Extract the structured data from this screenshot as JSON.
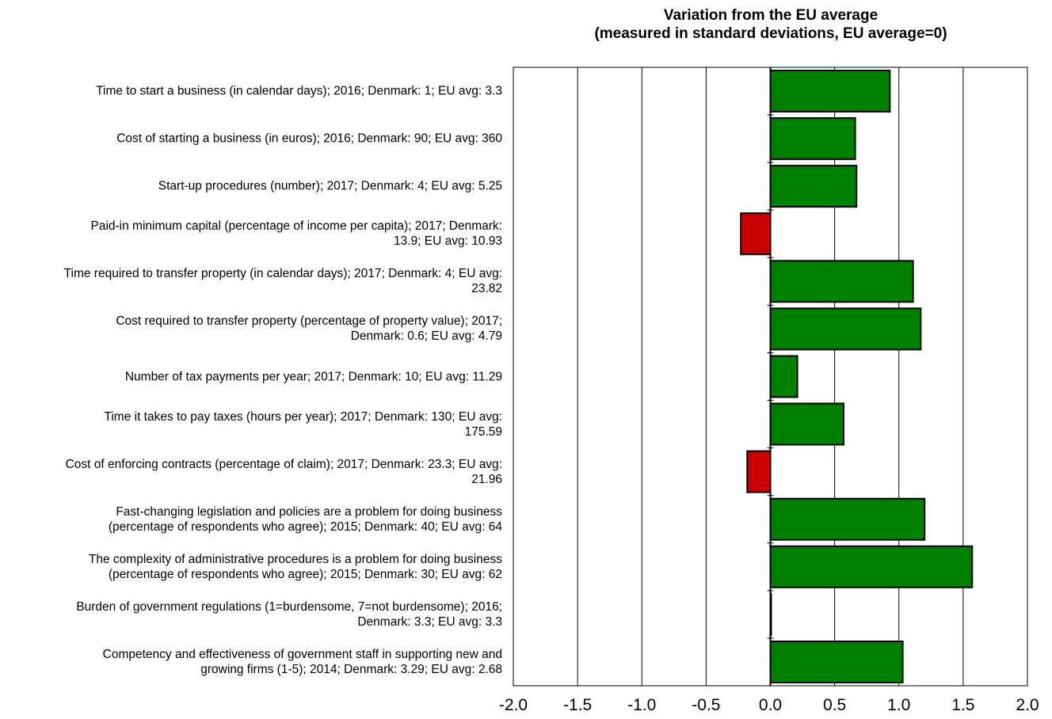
{
  "chart_data": {
    "type": "bar",
    "orientation": "horizontal",
    "title_lines": [
      "Variation from the EU average",
      "(measured in standard deviations, EU average=0)"
    ],
    "xlim": [
      -2.0,
      2.0
    ],
    "x_ticks": [
      "-2.0",
      "-1.5",
      "-1.0",
      "-0.5",
      "0.0",
      "0.5",
      "1.0",
      "1.5",
      "2.0"
    ],
    "grid": "vertical",
    "colors": {
      "positive": "#008000",
      "negative": "#cc0000",
      "frame": "#000000"
    },
    "categories": [
      {
        "lines": [
          "Time to start a business (in calendar days); 2016; Denmark: 1; EU avg: 3.3"
        ],
        "value": 0.93
      },
      {
        "lines": [
          "Cost of starting a business (in euros); 2016; Denmark: 90; EU avg: 360"
        ],
        "value": 0.66
      },
      {
        "lines": [
          "Start-up procedures (number); 2017; Denmark: 4; EU avg: 5.25"
        ],
        "value": 0.67
      },
      {
        "lines": [
          "Paid-in minimum capital (percentage of income per capita); 2017; Denmark:",
          "13.9; EU avg: 10.93"
        ],
        "value": -0.23
      },
      {
        "lines": [
          "Time required to transfer property (in calendar days); 2017; Denmark: 4; EU avg:",
          "23.82"
        ],
        "value": 1.11
      },
      {
        "lines": [
          "Cost required to transfer property (percentage of property value); 2017;",
          "Denmark: 0.6; EU avg: 4.79"
        ],
        "value": 1.17
      },
      {
        "lines": [
          "Number of tax payments per year; 2017; Denmark: 10; EU avg: 11.29"
        ],
        "value": 0.21
      },
      {
        "lines": [
          "Time it takes to pay taxes (hours per year); 2017; Denmark: 130; EU avg:",
          "175.59"
        ],
        "value": 0.57
      },
      {
        "lines": [
          "Cost of enforcing contracts (percentage of claim); 2017; Denmark: 23.3; EU avg:",
          "21.96"
        ],
        "value": -0.18
      },
      {
        "lines": [
          "Fast-changing legislation and policies are a problem for doing business",
          "(percentage of respondents who agree); 2015; Denmark: 40; EU avg: 64"
        ],
        "value": 1.2
      },
      {
        "lines": [
          "The complexity of administrative procedures is a problem for doing business",
          "(percentage of respondents who agree); 2015; Denmark: 30; EU avg: 62"
        ],
        "value": 1.57
      },
      {
        "lines": [
          "Burden of government regulations (1=burdensome, 7=not burdensome); 2016;",
          "Denmark: 3.3; EU avg: 3.3"
        ],
        "value": 0.0
      },
      {
        "lines": [
          "Competency and effectiveness of government staff in supporting new and",
          "growing firms (1-5); 2014; Denmark: 3.29; EU avg: 2.68"
        ],
        "value": 1.03
      }
    ]
  }
}
